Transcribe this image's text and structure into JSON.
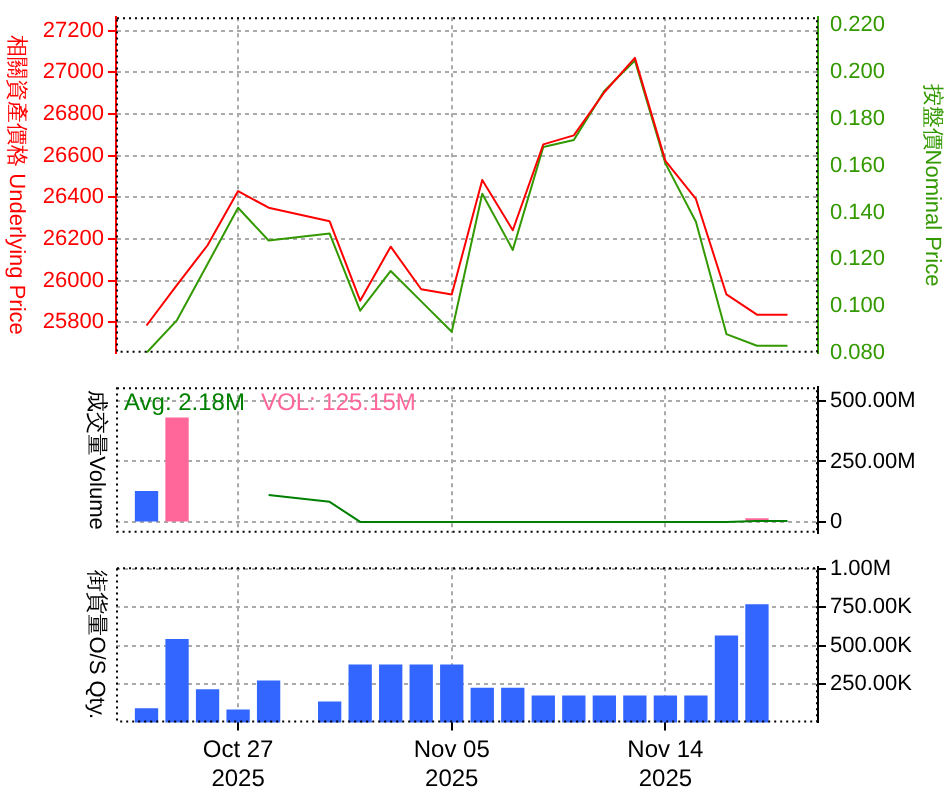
{
  "chart_data": [
    {
      "type": "line",
      "ylabel": "相關資產價格 Underlying Price",
      "y2label": "按盤價Nominal Price",
      "categories": [
        null,
        null,
        null,
        null,
        null,
        null,
        null,
        null,
        null,
        null,
        null,
        null,
        null,
        null,
        null,
        null,
        null,
        null,
        null,
        null,
        null,
        null
      ],
      "series": [
        {
          "color": "#ff0000",
          "axis": "y",
          "values": [
            25785,
            25980,
            26170,
            26430,
            26350,
            null,
            26285,
            25904,
            26163,
            25959,
            25934,
            26483,
            26242,
            26654,
            26697,
            26904,
            27069,
            26575,
            26392,
            25934,
            25837,
            25837
          ]
        },
        {
          "color": "#339900",
          "axis": "y2",
          "values": [
            0.08,
            0.094,
            0.118,
            0.142,
            0.128,
            null,
            0.131,
            0.098,
            0.115,
            0.102,
            0.089,
            0.148,
            0.124,
            0.168,
            0.171,
            0.192,
            0.205,
            0.161,
            0.136,
            0.088,
            0.083,
            0.083
          ]
        }
      ],
      "ylim": [
        25654,
        27264
      ],
      "yticks": [
        25800,
        26000,
        26200,
        26400,
        26600,
        26800,
        27000,
        27200
      ],
      "y2lim": [
        0.08,
        0.2235
      ],
      "y2ticks": [
        {
          "value": 0.08,
          "label": "0.080"
        },
        {
          "value": 0.1,
          "label": "0.100"
        },
        {
          "value": 0.12,
          "label": "0.120"
        },
        {
          "value": 0.14,
          "label": "0.140"
        },
        {
          "value": 0.16,
          "label": "0.160"
        },
        {
          "value": 0.18,
          "label": "0.180"
        },
        {
          "value": 0.2,
          "label": "0.200"
        },
        {
          "value": 0.22,
          "label": "0.220"
        }
      ],
      "grid": true,
      "marker": "none",
      "tick_labels": "y"
    },
    {
      "type": "bar",
      "ylabel": "成交量Volume",
      "categories": [
        null,
        null,
        null,
        null,
        null,
        null,
        null,
        null,
        null,
        null,
        null,
        null,
        null,
        null,
        null,
        null,
        null,
        null,
        null,
        null,
        null,
        null
      ],
      "series": [
        {
          "type": "line",
          "name": "Avg: 2.18M",
          "color": "#008000",
          "axis": "y2",
          "values": [
            null,
            null,
            null,
            null,
            111000000,
            null,
            83000000,
            0,
            0,
            0,
            0,
            0,
            0,
            0,
            0,
            0,
            0,
            0,
            0,
            0,
            4000000,
            4000000
          ]
        },
        {
          "name": "VOL: 125.15M",
          "color": "#ff6699",
          "axis": "y2",
          "values": [
            null,
            429000000,
            null,
            null,
            null,
            null,
            null,
            null,
            null,
            null,
            null,
            null,
            null,
            null,
            null,
            null,
            null,
            null,
            null,
            null,
            12000000,
            null
          ]
        },
        {
          "color": "#3366ff",
          "axis": "y2",
          "values": [
            125000000,
            null,
            null,
            null,
            null,
            null,
            null,
            null,
            null,
            null,
            null,
            null,
            null,
            null,
            null,
            null,
            null,
            null,
            null,
            null,
            null,
            null
          ]
        }
      ],
      "y2lim": [
        -45000000,
        557000000
      ],
      "y2ticks": [
        0,
        {
          "value": 250000000,
          "label": "250.00M"
        },
        {
          "value": 500000000,
          "label": "500.00M"
        }
      ],
      "grid": true,
      "legend": "top left",
      "marker": "none",
      "tick_labels": "y"
    },
    {
      "type": "bar",
      "ylabel": "街貨量O/S Qty.",
      "categories": [
        null,
        null,
        null,
        "Oct 27\n2025",
        null,
        null,
        null,
        null,
        null,
        null,
        "Nov 05\n2025",
        null,
        null,
        null,
        null,
        null,
        null,
        "Nov 14\n2025",
        null,
        null,
        null,
        null
      ],
      "series": [
        {
          "color": "#3366ff",
          "axis": "y2",
          "values": [
            87000,
            539000,
            211000,
            79000,
            268000,
            null,
            132000,
            373000,
            373000,
            373000,
            373000,
            222000,
            222000,
            170000,
            170000,
            170000,
            170000,
            170000,
            170000,
            562000,
            765000,
            null
          ]
        }
      ],
      "y2lim": [
        0,
        1010000
      ],
      "y2ticks": [
        {
          "value": 250000,
          "label": "250.00K"
        },
        {
          "value": 500000,
          "label": "500.00K"
        },
        {
          "value": 750000,
          "label": "750.00K"
        },
        {
          "value": 1000000,
          "label": "1.00M"
        }
      ],
      "grid": true
    }
  ]
}
